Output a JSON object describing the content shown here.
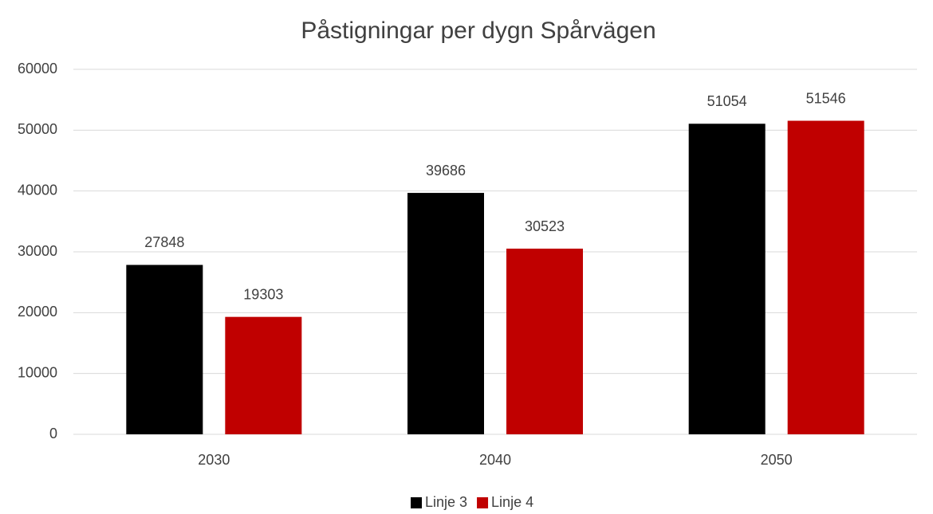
{
  "chart_data": {
    "type": "bar",
    "title": "Påstigningar per dygn Spårvägen",
    "categories": [
      "2030",
      "2040",
      "2050"
    ],
    "series": [
      {
        "name": "Linje 3",
        "color": "#000000",
        "values": [
          27848,
          39686,
          51054
        ]
      },
      {
        "name": "Linje 4",
        "color": "#c00000",
        "values": [
          19303,
          30523,
          51546
        ]
      }
    ],
    "ylim": [
      0,
      60000
    ],
    "yticks": [
      0,
      10000,
      20000,
      30000,
      40000,
      50000,
      60000
    ],
    "grid": true,
    "legend": "bottom",
    "data_labels": true
  }
}
